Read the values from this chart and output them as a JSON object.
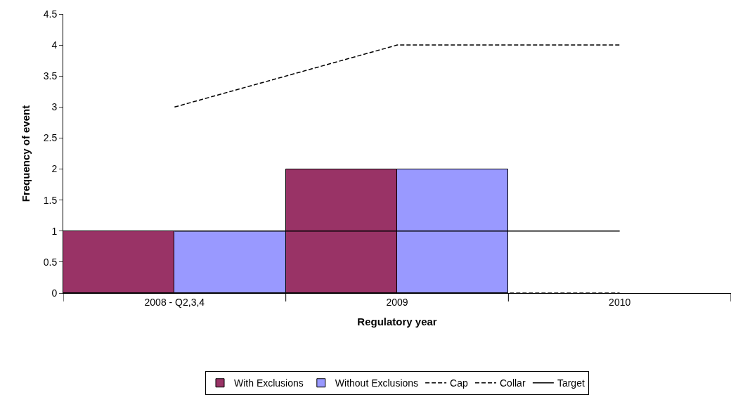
{
  "chart_data": {
    "type": "bar",
    "xlabel": "Regulatory year",
    "ylabel": "Frequency of event",
    "categories": [
      "2008 - Q2,3,4",
      "2009",
      "2010"
    ],
    "series": [
      {
        "name": "With Exclusions",
        "color": "#993366",
        "values": [
          1,
          2,
          0
        ]
      },
      {
        "name": "Without Exclusions",
        "color": "#9999ff",
        "values": [
          1,
          2,
          0
        ]
      },
      {
        "name": "Cap",
        "type": "line",
        "color": "#000000",
        "line_style": "dashed",
        "values": [
          3,
          4,
          4
        ]
      },
      {
        "name": "Collar",
        "type": "line",
        "color": "#000000",
        "line_style": "dashed",
        "values": [
          0,
          0,
          0
        ]
      },
      {
        "name": "Target",
        "type": "line",
        "color": "#000000",
        "line_style": "solid",
        "values": [
          1,
          1,
          1
        ]
      }
    ],
    "ylim": [
      0,
      4.5
    ],
    "yticks": [
      0,
      0.5,
      1,
      1.5,
      2,
      2.5,
      3,
      3.5,
      4,
      4.5
    ],
    "legend": "bottom",
    "marker": "none"
  }
}
